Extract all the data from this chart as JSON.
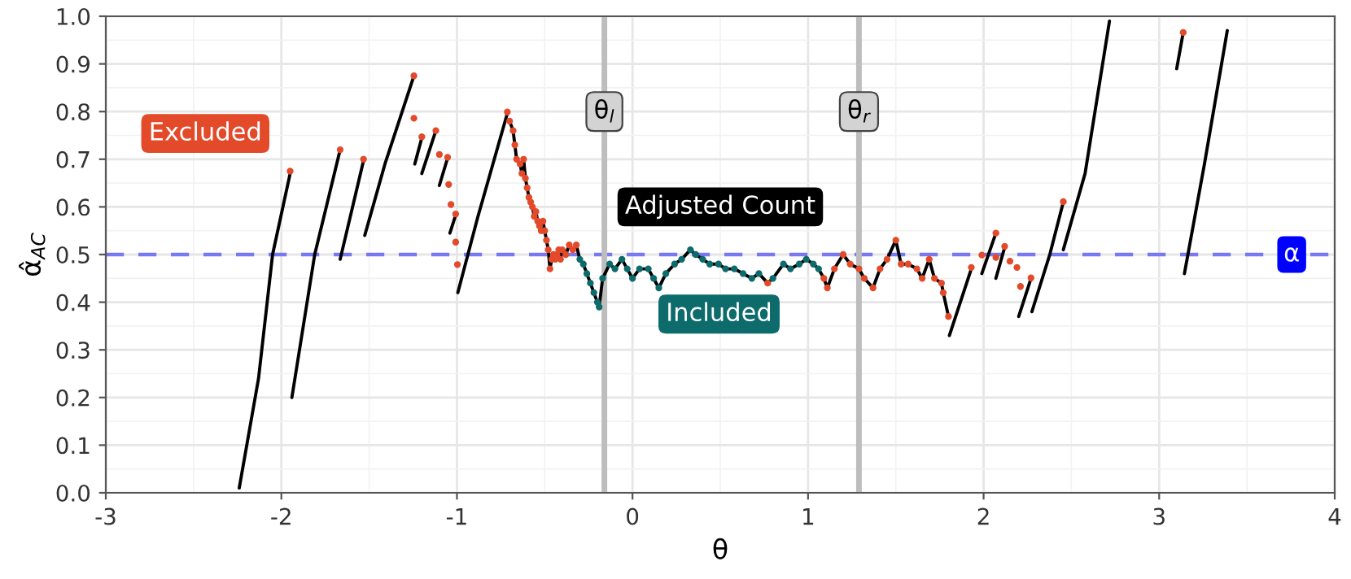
{
  "chart_data": {
    "type": "line",
    "xlabel": "θ",
    "ylabel": "α̂$_{AC}$",
    "xlim": [
      -3,
      4
    ],
    "ylim": [
      0,
      1
    ],
    "xticks": [
      -3,
      -2,
      -1,
      0,
      1,
      2,
      3,
      4
    ],
    "yticks": [
      {
        "value": 0,
        "label": "0.0"
      },
      0.1,
      0.2,
      0.3,
      0.4,
      0.5,
      0.6,
      0.7,
      0.8,
      0.9,
      {
        "value": 1,
        "label": "1.0"
      }
    ],
    "grid": true,
    "ref_lines": [
      {
        "axis": "y",
        "value": 0.5,
        "label": "α",
        "color": "#7878f0",
        "line_style": "dashed"
      },
      {
        "axis": "x",
        "value": -0.16,
        "label": "θ$_{l}$",
        "color": "#bdbdbd"
      },
      {
        "axis": "x",
        "value": 1.29,
        "label": "θ$_{r}$",
        "color": "#bdbdbd"
      }
    ],
    "series": [
      {
        "name": "Adjusted Count",
        "color": "#000000",
        "x": [
          -2.24,
          -2.13,
          -2.05,
          -1.95,
          null,
          -1.94,
          -1.81,
          -1.665,
          null,
          -1.665,
          -1.53,
          null,
          -1.525,
          -1.41,
          -1.245,
          null,
          -1.24,
          -1.2,
          null,
          -1.2,
          -1.12,
          null,
          -1.1,
          -1.055,
          null,
          -1.04,
          -1.005,
          null,
          -0.995,
          -0.88,
          -0.71,
          null,
          -0.7,
          -0.68,
          -0.67,
          -0.66,
          -0.64,
          -0.63,
          -0.62,
          -0.61,
          -0.6,
          -0.59,
          -0.58,
          -0.57,
          -0.56,
          -0.55,
          -0.54,
          -0.53,
          -0.52,
          -0.51,
          -0.5,
          -0.49,
          -0.48,
          -0.47,
          -0.46,
          -0.45,
          -0.44,
          -0.43,
          -0.42,
          -0.41,
          -0.4,
          -0.38,
          -0.36,
          -0.34,
          -0.32,
          -0.3,
          -0.28,
          -0.26,
          -0.24,
          -0.22,
          -0.2,
          -0.19,
          -0.17,
          -0.13,
          -0.1,
          -0.06,
          -0.03,
          0.0,
          0.04,
          0.09,
          0.12,
          0.15,
          0.19,
          0.24,
          0.28,
          0.33,
          0.36,
          0.4,
          0.44,
          0.49,
          0.53,
          0.58,
          0.63,
          0.68,
          0.72,
          0.77,
          0.8,
          0.86,
          0.9,
          0.95,
          0.99,
          1.03,
          1.06,
          1.09,
          1.11,
          1.15,
          1.2,
          1.24,
          1.29,
          1.32,
          1.37,
          1.41,
          1.45,
          1.5,
          1.53,
          1.57,
          1.62,
          1.65,
          1.69,
          1.72,
          1.76,
          1.77,
          1.8,
          null,
          1.805,
          1.93,
          null,
          1.99,
          2.07,
          null,
          2.07,
          2.12,
          null,
          2.2,
          2.27,
          null,
          2.275,
          2.377,
          2.454,
          null,
          2.454,
          2.578,
          2.717,
          null,
          3.1,
          3.137,
          null,
          3.144,
          3.258,
          3.388
        ],
        "values": [
          0.01,
          0.24,
          0.5,
          0.67,
          null,
          0.2,
          0.5,
          0.72,
          null,
          0.49,
          0.7,
          null,
          0.54,
          0.69,
          0.875,
          null,
          0.69,
          0.745,
          null,
          0.67,
          0.76,
          null,
          0.645,
          0.7,
          null,
          0.545,
          0.585,
          null,
          0.42,
          0.58,
          0.8,
          null,
          0.78,
          0.76,
          0.73,
          0.7,
          0.69,
          0.67,
          0.7,
          0.66,
          0.64,
          0.62,
          0.61,
          0.6,
          0.58,
          0.59,
          0.57,
          0.56,
          0.55,
          0.57,
          0.55,
          0.53,
          0.51,
          0.47,
          0.49,
          0.5,
          0.49,
          0.5,
          0.51,
          0.49,
          0.51,
          0.5,
          0.52,
          0.51,
          0.52,
          0.49,
          0.48,
          0.46,
          0.44,
          0.42,
          0.4,
          0.39,
          0.45,
          0.48,
          0.47,
          0.49,
          0.47,
          0.45,
          0.47,
          0.47,
          0.45,
          0.43,
          0.46,
          0.48,
          0.49,
          0.51,
          0.5,
          0.49,
          0.48,
          0.48,
          0.47,
          0.47,
          0.46,
          0.45,
          0.46,
          0.44,
          0.45,
          0.48,
          0.47,
          0.48,
          0.49,
          0.48,
          0.47,
          0.45,
          0.43,
          0.47,
          0.5,
          0.48,
          0.47,
          0.45,
          0.43,
          0.47,
          0.49,
          0.53,
          0.48,
          0.48,
          0.47,
          0.45,
          0.49,
          0.45,
          0.44,
          0.42,
          0.37,
          null,
          0.33,
          0.47,
          null,
          0.46,
          0.545,
          null,
          0.45,
          0.515,
          null,
          0.37,
          0.45,
          null,
          0.38,
          0.5,
          0.61,
          null,
          0.51,
          0.67,
          0.99,
          null,
          0.89,
          0.966,
          null,
          0.46,
          0.69,
          0.97
        ]
      },
      {
        "name": "Excluded",
        "type": "scatter",
        "color": "#e34a2a",
        "x": [
          -1.95,
          -1.665,
          -1.532,
          -1.245,
          -1.245,
          -1.2,
          -1.12,
          -1.1,
          -1.053,
          -1.047,
          -1.034,
          -1.007,
          -1.007,
          -0.997,
          -0.713,
          -0.7,
          -0.68,
          -0.67,
          -0.66,
          -0.64,
          -0.63,
          -0.62,
          -0.61,
          -0.6,
          -0.59,
          -0.58,
          -0.57,
          -0.56,
          -0.55,
          -0.54,
          -0.53,
          -0.52,
          -0.51,
          -0.5,
          -0.49,
          -0.48,
          -0.47,
          -0.46,
          -0.45,
          -0.44,
          -0.43,
          -0.42,
          -0.41,
          -0.4,
          -0.38,
          -0.36,
          -0.34,
          -0.32,
          0.77,
          1.09,
          1.11,
          1.15,
          1.2,
          1.24,
          1.29,
          1.32,
          1.37,
          1.41,
          1.45,
          1.5,
          1.53,
          1.57,
          1.62,
          1.65,
          1.69,
          1.72,
          1.76,
          1.77,
          1.8,
          1.93,
          1.99,
          2.07,
          2.07,
          2.12,
          2.15,
          2.19,
          2.21,
          2.27,
          2.454,
          3.137
        ],
        "values": [
          0.675,
          0.72,
          0.7,
          0.875,
          0.786,
          0.747,
          0.76,
          0.71,
          0.704,
          0.647,
          0.605,
          0.585,
          0.526,
          0.479,
          0.799,
          0.78,
          0.76,
          0.73,
          0.7,
          0.69,
          0.67,
          0.7,
          0.66,
          0.64,
          0.62,
          0.61,
          0.6,
          0.58,
          0.59,
          0.57,
          0.56,
          0.55,
          0.57,
          0.55,
          0.53,
          0.51,
          0.47,
          0.49,
          0.5,
          0.49,
          0.5,
          0.51,
          0.49,
          0.51,
          0.5,
          0.52,
          0.51,
          0.52,
          0.44,
          0.45,
          0.43,
          0.47,
          0.5,
          0.48,
          0.47,
          0.45,
          0.43,
          0.47,
          0.49,
          0.53,
          0.48,
          0.48,
          0.47,
          0.45,
          0.49,
          0.45,
          0.44,
          0.42,
          0.37,
          0.473,
          0.499,
          0.545,
          0.494,
          0.517,
          0.486,
          0.473,
          0.433,
          0.451,
          0.611,
          0.966
        ]
      },
      {
        "name": "Included",
        "type": "scatter",
        "color": "#0d6b6b",
        "x": [
          -0.3,
          -0.28,
          -0.26,
          -0.24,
          -0.22,
          -0.2,
          -0.19,
          -0.17,
          -0.13,
          -0.1,
          -0.06,
          -0.03,
          0.0,
          0.04,
          0.09,
          0.12,
          0.15,
          0.19,
          0.24,
          0.28,
          0.33,
          0.36,
          0.4,
          0.44,
          0.49,
          0.53,
          0.58,
          0.63,
          0.68,
          0.72,
          0.8,
          0.86,
          0.9,
          0.95,
          0.99,
          1.03,
          1.06
        ],
        "values": [
          0.49,
          0.48,
          0.46,
          0.44,
          0.42,
          0.4,
          0.39,
          0.45,
          0.48,
          0.47,
          0.49,
          0.47,
          0.45,
          0.47,
          0.47,
          0.45,
          0.43,
          0.46,
          0.48,
          0.49,
          0.51,
          0.5,
          0.49,
          0.48,
          0.48,
          0.47,
          0.47,
          0.46,
          0.45,
          0.46,
          0.45,
          0.48,
          0.47,
          0.48,
          0.49,
          0.48,
          0.47
        ]
      }
    ]
  }
}
